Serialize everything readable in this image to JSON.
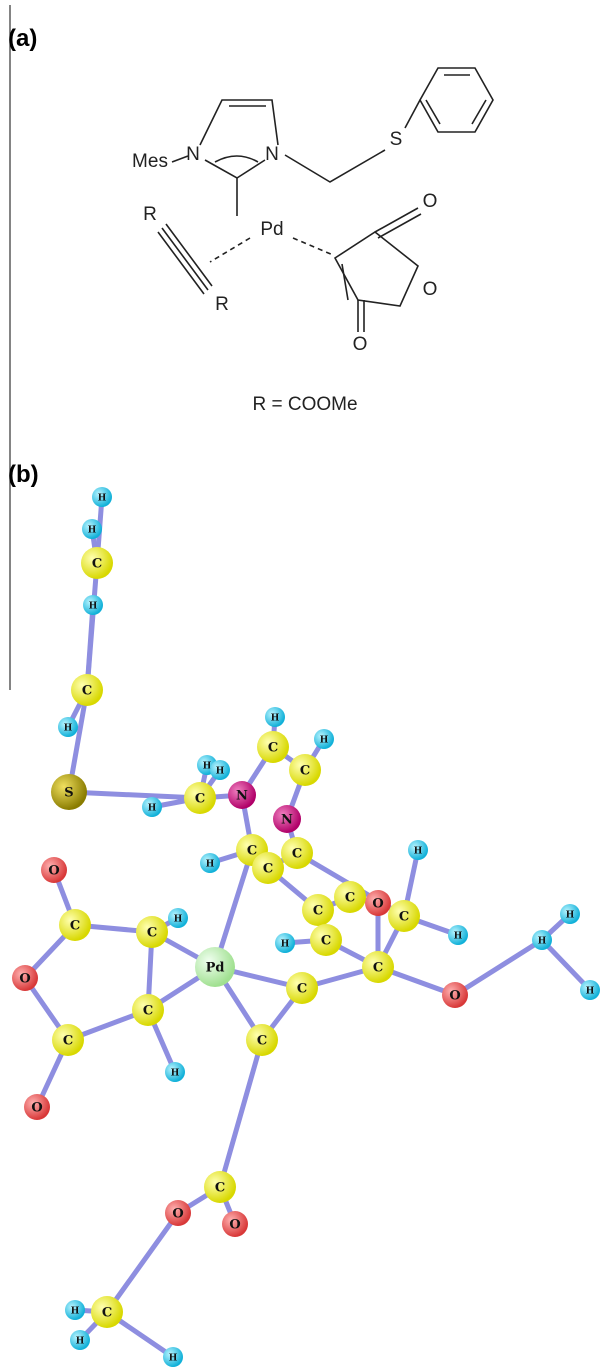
{
  "panel_a": {
    "label": "(a)",
    "atoms": [
      "Mes",
      "N",
      "N",
      "S",
      "Pd",
      "R",
      "R",
      "O",
      "O",
      "O"
    ],
    "caption": "R = COOMe"
  },
  "panel_b": {
    "label": "(b)",
    "atoms": [
      "H",
      "H",
      "C",
      "H",
      "C",
      "H",
      "S",
      "H",
      "C",
      "H",
      "C",
      "H",
      "H",
      "C",
      "H",
      "N",
      "N",
      "C",
      "H",
      "C",
      "C",
      "H",
      "O",
      "C",
      "C",
      "C",
      "H",
      "C",
      "H",
      "C",
      "H",
      "H",
      "O",
      "H",
      "O",
      "C",
      "H",
      "C",
      "Pd",
      "O",
      "C",
      "C",
      "C",
      "C",
      "H",
      "O",
      "C",
      "O",
      "O",
      "H",
      "C",
      "H",
      "H"
    ]
  }
}
